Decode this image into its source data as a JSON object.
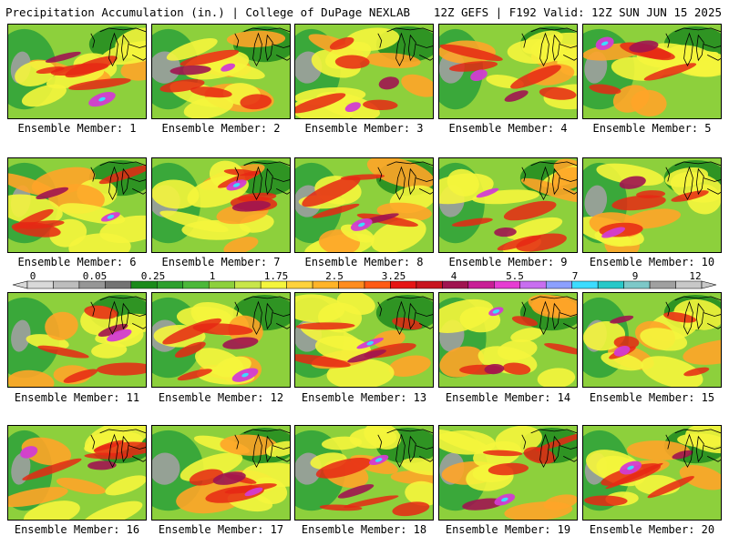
{
  "header": {
    "title": "Precipitation Accumulation (in.) | College of DuPage NEXLAB",
    "run_info": "12Z GEFS | F192 Valid: 12Z SUN JUN 15 2025"
  },
  "panels": [
    {
      "label": "Ensemble Member: 1"
    },
    {
      "label": "Ensemble Member: 2"
    },
    {
      "label": "Ensemble Member: 3"
    },
    {
      "label": "Ensemble Member: 4"
    },
    {
      "label": "Ensemble Member: 5"
    },
    {
      "label": "Ensemble Member: 6"
    },
    {
      "label": "Ensemble Member: 7"
    },
    {
      "label": "Ensemble Member: 8"
    },
    {
      "label": "Ensemble Member: 9"
    },
    {
      "label": "Ensemble Member: 10"
    },
    {
      "label": "Ensemble Member: 11"
    },
    {
      "label": "Ensemble Member: 12"
    },
    {
      "label": "Ensemble Member: 13"
    },
    {
      "label": "Ensemble Member: 14"
    },
    {
      "label": "Ensemble Member: 15"
    },
    {
      "label": "Ensemble Member: 16"
    },
    {
      "label": "Ensemble Member: 17"
    },
    {
      "label": "Ensemble Member: 18"
    },
    {
      "label": "Ensemble Member: 19"
    },
    {
      "label": "Ensemble Member: 20"
    }
  ],
  "colorbar": {
    "tick_labels": [
      "0",
      "0.05",
      "0.25",
      "1",
      "1.75",
      "2.5",
      "3.25",
      "4",
      "5.5",
      "7",
      "9",
      "12"
    ],
    "colors": [
      "#d9d9d9",
      "#bdbdbd",
      "#969696",
      "#737373",
      "#1a8a1a",
      "#2ea02e",
      "#4cb83a",
      "#8dd03c",
      "#c8e64a",
      "#f5f53c",
      "#ffd23c",
      "#ffb428",
      "#ff8c1e",
      "#ff5a14",
      "#e61414",
      "#c8141e",
      "#a01450",
      "#c81e96",
      "#e63cd2",
      "#c86ef0",
      "#8ca0ff",
      "#3cdcff",
      "#28c8c8",
      "#7dc8c8",
      "#a0a0a0",
      "#c8c8c8"
    ]
  },
  "palette": {
    "gray": "#a0a0a0",
    "dark_green": "#1f8a1f",
    "green": "#3aa83a",
    "light_green": "#8dd03c",
    "yellow": "#f5f53c",
    "orange": "#ffa428",
    "red": "#e62814",
    "dark_red": "#a01450",
    "magenta": "#d23cd2",
    "cyan": "#3cdcff"
  }
}
